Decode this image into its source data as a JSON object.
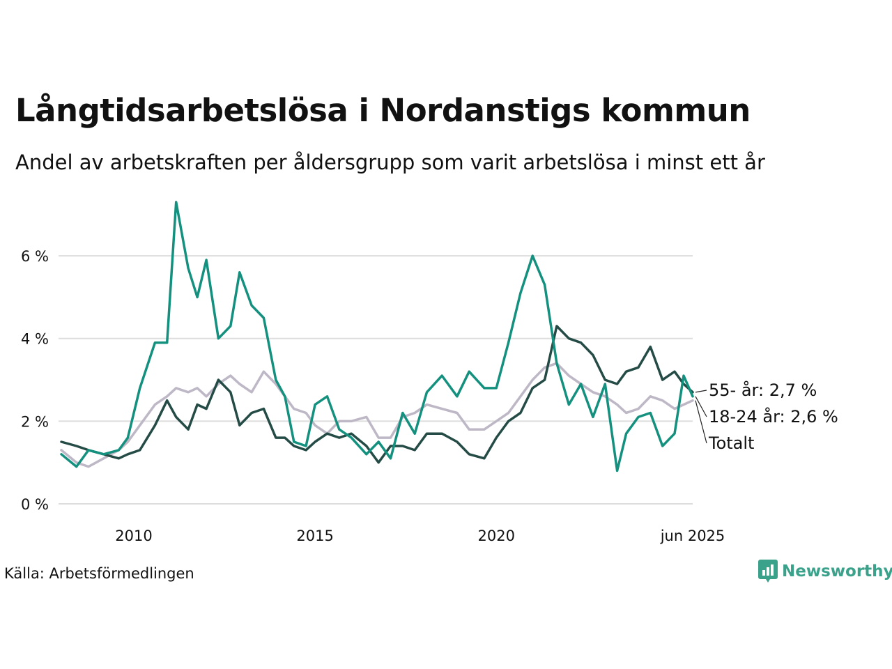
{
  "title": "Långtidsarbetslösa i Nordanstigs kommun",
  "subtitle": "Andel av arbetskraften per åldersgrupp som varit arbetslösa i minst ett år",
  "source": "Källa: Arbetsförmedlingen",
  "brand": "Newsworthy",
  "colors": {
    "youth": "#14907f",
    "senior": "#244b45",
    "total": "#bdb7c6",
    "grid": "#dddddd",
    "brand": "#3aa18a"
  },
  "chart_data": {
    "type": "line",
    "title": "Långtidsarbetslösa i Nordanstigs kommun",
    "subtitle": "Andel av arbetskraften per åldersgrupp som varit arbetslösa i minst ett år",
    "xlabel": "",
    "ylabel": "",
    "xlim": [
      "2008-01",
      "2025-06"
    ],
    "ylim": [
      0,
      7.3
    ],
    "y_ticks": [
      0,
      2,
      4,
      6
    ],
    "y_tick_labels": [
      "0 %",
      "2 %",
      "4 %",
      "6 %"
    ],
    "x_ticks": [
      "2010-01",
      "2015-01",
      "2020-01",
      "2025-06"
    ],
    "x_tick_labels": [
      "2010",
      "2015",
      "2020",
      "jun 2025"
    ],
    "grid": "horizontal",
    "legend": "end-labels",
    "series": [
      {
        "name": "Totalt",
        "end_label": "Totalt",
        "color": "#bdb7c6",
        "points": [
          [
            "2008-01",
            1.3
          ],
          [
            "2008-06",
            1.0
          ],
          [
            "2008-10",
            0.9
          ],
          [
            "2009-03",
            1.1
          ],
          [
            "2009-08",
            1.3
          ],
          [
            "2009-11",
            1.5
          ],
          [
            "2010-03",
            1.9
          ],
          [
            "2010-08",
            2.4
          ],
          [
            "2010-12",
            2.6
          ],
          [
            "2011-03",
            2.8
          ],
          [
            "2011-07",
            2.7
          ],
          [
            "2011-10",
            2.8
          ],
          [
            "2012-01",
            2.6
          ],
          [
            "2012-05",
            2.9
          ],
          [
            "2012-09",
            3.1
          ],
          [
            "2012-12",
            2.9
          ],
          [
            "2013-04",
            2.7
          ],
          [
            "2013-08",
            3.2
          ],
          [
            "2013-12",
            2.9
          ],
          [
            "2014-03",
            2.6
          ],
          [
            "2014-06",
            2.3
          ],
          [
            "2014-10",
            2.2
          ],
          [
            "2015-01",
            1.9
          ],
          [
            "2015-05",
            1.7
          ],
          [
            "2015-09",
            2.0
          ],
          [
            "2016-01",
            2.0
          ],
          [
            "2016-06",
            2.1
          ],
          [
            "2016-10",
            1.6
          ],
          [
            "2017-02",
            1.6
          ],
          [
            "2017-06",
            2.1
          ],
          [
            "2017-10",
            2.2
          ],
          [
            "2018-02",
            2.4
          ],
          [
            "2018-07",
            2.3
          ],
          [
            "2018-12",
            2.2
          ],
          [
            "2019-04",
            1.8
          ],
          [
            "2019-09",
            1.8
          ],
          [
            "2020-01",
            2.0
          ],
          [
            "2020-05",
            2.2
          ],
          [
            "2020-09",
            2.6
          ],
          [
            "2021-01",
            3.0
          ],
          [
            "2021-05",
            3.3
          ],
          [
            "2021-09",
            3.4
          ],
          [
            "2022-01",
            3.1
          ],
          [
            "2022-05",
            2.9
          ],
          [
            "2022-09",
            2.7
          ],
          [
            "2023-01",
            2.6
          ],
          [
            "2023-05",
            2.4
          ],
          [
            "2023-08",
            2.2
          ],
          [
            "2023-12",
            2.3
          ],
          [
            "2024-04",
            2.6
          ],
          [
            "2024-08",
            2.5
          ],
          [
            "2024-12",
            2.3
          ],
          [
            "2025-03",
            2.4
          ],
          [
            "2025-06",
            2.5
          ]
        ]
      },
      {
        "name": "55- år",
        "end_label": "55- år: 2,7 %",
        "color": "#244b45",
        "points": [
          [
            "2008-01",
            1.5
          ],
          [
            "2008-06",
            1.4
          ],
          [
            "2008-10",
            1.3
          ],
          [
            "2009-03",
            1.2
          ],
          [
            "2009-08",
            1.1
          ],
          [
            "2009-11",
            1.2
          ],
          [
            "2010-03",
            1.3
          ],
          [
            "2010-08",
            1.9
          ],
          [
            "2010-12",
            2.5
          ],
          [
            "2011-03",
            2.1
          ],
          [
            "2011-07",
            1.8
          ],
          [
            "2011-10",
            2.4
          ],
          [
            "2012-01",
            2.3
          ],
          [
            "2012-05",
            3.0
          ],
          [
            "2012-09",
            2.7
          ],
          [
            "2012-12",
            1.9
          ],
          [
            "2013-04",
            2.2
          ],
          [
            "2013-08",
            2.3
          ],
          [
            "2013-12",
            1.6
          ],
          [
            "2014-03",
            1.6
          ],
          [
            "2014-06",
            1.4
          ],
          [
            "2014-10",
            1.3
          ],
          [
            "2015-01",
            1.5
          ],
          [
            "2015-05",
            1.7
          ],
          [
            "2015-09",
            1.6
          ],
          [
            "2016-01",
            1.7
          ],
          [
            "2016-06",
            1.4
          ],
          [
            "2016-10",
            1.0
          ],
          [
            "2017-02",
            1.4
          ],
          [
            "2017-06",
            1.4
          ],
          [
            "2017-10",
            1.3
          ],
          [
            "2018-02",
            1.7
          ],
          [
            "2018-07",
            1.7
          ],
          [
            "2018-12",
            1.5
          ],
          [
            "2019-04",
            1.2
          ],
          [
            "2019-09",
            1.1
          ],
          [
            "2020-01",
            1.6
          ],
          [
            "2020-05",
            2.0
          ],
          [
            "2020-09",
            2.2
          ],
          [
            "2021-01",
            2.8
          ],
          [
            "2021-05",
            3.0
          ],
          [
            "2021-09",
            4.3
          ],
          [
            "2022-01",
            4.0
          ],
          [
            "2022-05",
            3.9
          ],
          [
            "2022-09",
            3.6
          ],
          [
            "2023-01",
            3.0
          ],
          [
            "2023-05",
            2.9
          ],
          [
            "2023-08",
            3.2
          ],
          [
            "2023-12",
            3.3
          ],
          [
            "2024-04",
            3.8
          ],
          [
            "2024-08",
            3.0
          ],
          [
            "2024-12",
            3.2
          ],
          [
            "2025-03",
            2.9
          ],
          [
            "2025-06",
            2.7
          ]
        ]
      },
      {
        "name": "18-24 år",
        "end_label": "18-24 år: 2,6 %",
        "color": "#14907f",
        "points": [
          [
            "2008-01",
            1.2
          ],
          [
            "2008-06",
            0.9
          ],
          [
            "2008-10",
            1.3
          ],
          [
            "2009-03",
            1.2
          ],
          [
            "2009-08",
            1.3
          ],
          [
            "2009-11",
            1.6
          ],
          [
            "2010-03",
            2.8
          ],
          [
            "2010-08",
            3.9
          ],
          [
            "2010-12",
            3.9
          ],
          [
            "2011-03",
            7.3
          ],
          [
            "2011-07",
            5.7
          ],
          [
            "2011-10",
            5.0
          ],
          [
            "2012-01",
            5.9
          ],
          [
            "2012-05",
            4.0
          ],
          [
            "2012-09",
            4.3
          ],
          [
            "2012-12",
            5.6
          ],
          [
            "2013-04",
            4.8
          ],
          [
            "2013-08",
            4.5
          ],
          [
            "2013-12",
            3.0
          ],
          [
            "2014-03",
            2.6
          ],
          [
            "2014-06",
            1.5
          ],
          [
            "2014-10",
            1.4
          ],
          [
            "2015-01",
            2.4
          ],
          [
            "2015-05",
            2.6
          ],
          [
            "2015-09",
            1.8
          ],
          [
            "2016-01",
            1.6
          ],
          [
            "2016-06",
            1.2
          ],
          [
            "2016-10",
            1.5
          ],
          [
            "2017-02",
            1.1
          ],
          [
            "2017-06",
            2.2
          ],
          [
            "2017-10",
            1.7
          ],
          [
            "2018-02",
            2.7
          ],
          [
            "2018-07",
            3.1
          ],
          [
            "2018-12",
            2.6
          ],
          [
            "2019-04",
            3.2
          ],
          [
            "2019-09",
            2.8
          ],
          [
            "2020-01",
            2.8
          ],
          [
            "2020-05",
            3.9
          ],
          [
            "2020-09",
            5.1
          ],
          [
            "2021-01",
            6.0
          ],
          [
            "2021-05",
            5.3
          ],
          [
            "2021-09",
            3.4
          ],
          [
            "2022-01",
            2.4
          ],
          [
            "2022-05",
            2.9
          ],
          [
            "2022-09",
            2.1
          ],
          [
            "2023-01",
            2.9
          ],
          [
            "2023-05",
            0.8
          ],
          [
            "2023-08",
            1.7
          ],
          [
            "2023-12",
            2.1
          ],
          [
            "2024-04",
            2.2
          ],
          [
            "2024-08",
            1.4
          ],
          [
            "2024-12",
            1.7
          ],
          [
            "2025-03",
            3.1
          ],
          [
            "2025-06",
            2.6
          ]
        ]
      }
    ]
  }
}
